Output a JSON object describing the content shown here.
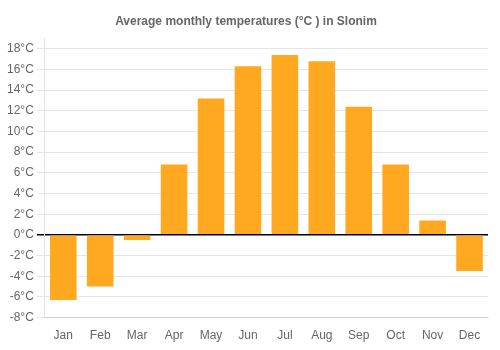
{
  "chart_data": {
    "type": "bar",
    "title": "Average monthly temperatures (°C ) in Slonim",
    "categories": [
      "Jan",
      "Feb",
      "Mar",
      "Apr",
      "May",
      "Jun",
      "Jul",
      "Aug",
      "Sep",
      "Oct",
      "Nov",
      "Dec"
    ],
    "values": [
      -6.3,
      -5.0,
      -0.5,
      6.8,
      13.2,
      16.3,
      17.4,
      16.8,
      12.4,
      6.8,
      1.4,
      -3.5
    ],
    "color": "#FFA820",
    "ylim": [
      -8,
      19
    ],
    "yticks": [
      {
        "value": -8,
        "label": "-8°C"
      },
      {
        "value": -6,
        "label": "-6°C"
      },
      {
        "value": -4,
        "label": "-4°C"
      },
      {
        "value": -2,
        "label": "-2°C"
      },
      {
        "value": 0,
        "label": "0°C"
      },
      {
        "value": 2,
        "label": "2°C"
      },
      {
        "value": 4,
        "label": "4°C"
      },
      {
        "value": 6,
        "label": "6°C"
      },
      {
        "value": 8,
        "label": "8°C"
      },
      {
        "value": 10,
        "label": "10°C"
      },
      {
        "value": 12,
        "label": "12°C"
      },
      {
        "value": 14,
        "label": "14°C"
      },
      {
        "value": 16,
        "label": "16°C"
      },
      {
        "value": 18,
        "label": "18°C"
      }
    ],
    "grid": true
  }
}
